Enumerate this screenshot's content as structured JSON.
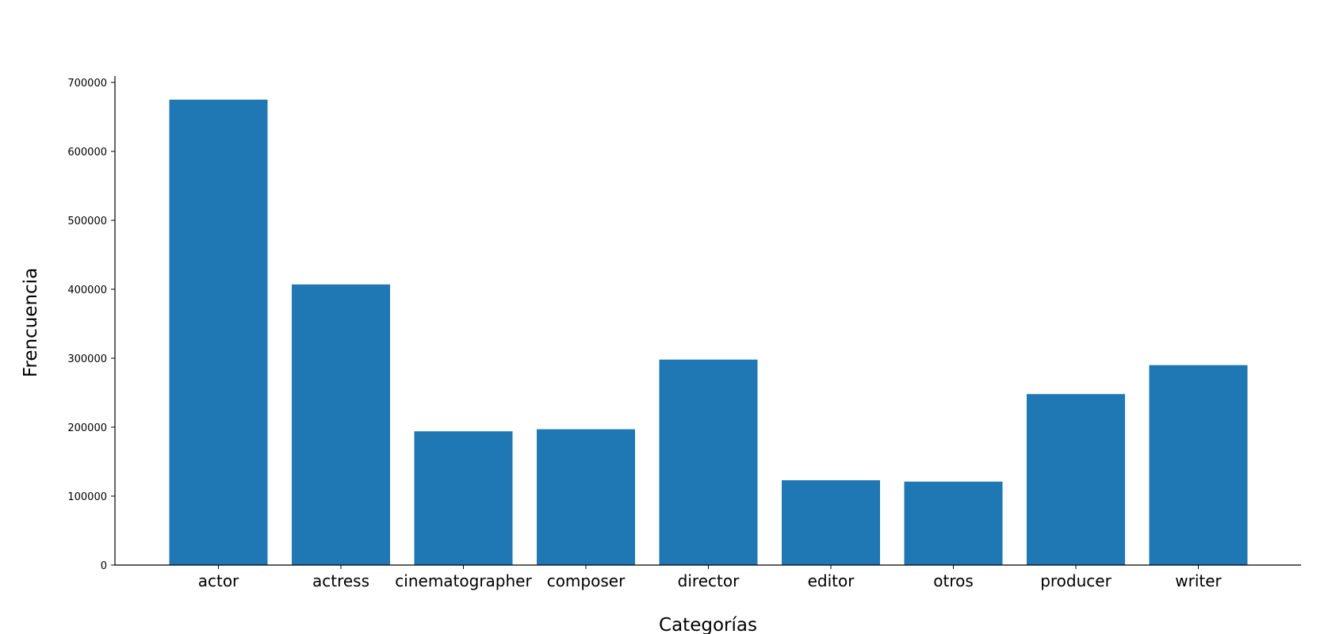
{
  "chart_data": {
    "type": "bar",
    "title": "",
    "xlabel": "Categorías",
    "ylabel": "Frencuencia",
    "categories": [
      "actor",
      "actress",
      "cinematographer",
      "composer",
      "director",
      "editor",
      "otros",
      "producer",
      "writer"
    ],
    "values": [
      675000,
      407000,
      194000,
      197000,
      298000,
      123000,
      121000,
      248000,
      290000
    ],
    "ylim": [
      0,
      700000
    ],
    "yticks": [
      0,
      100000,
      200000,
      300000,
      400000,
      500000,
      600000,
      700000
    ],
    "ytick_labels": [
      "0",
      "100000",
      "200000",
      "300000",
      "400000",
      "500000",
      "600000",
      "700000"
    ],
    "grid": false,
    "bar_color": "#1f77b4"
  }
}
